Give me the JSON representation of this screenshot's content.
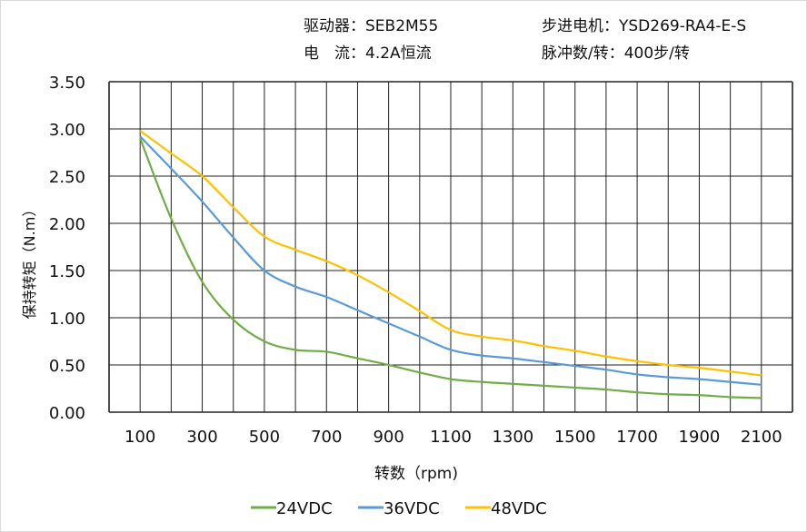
{
  "header": {
    "driver": "驱动器：SEB2M55",
    "motor": "步进电机：YSD269-RA4-E-S",
    "current": "电　流：4.2A恒流",
    "pulses": "脉冲数/转：400步/转"
  },
  "chart_data": {
    "type": "line",
    "title": "",
    "xlabel": "转数（rpm)",
    "ylabel": "保持转矩（N.m）",
    "xlim": [
      0,
      2200
    ],
    "ylim": [
      0,
      3.5
    ],
    "yticks": [
      "0.00",
      "0.50",
      "1.00",
      "1.50",
      "2.00",
      "2.50",
      "3.00",
      "3.50"
    ],
    "xticks": [
      "100",
      "300",
      "500",
      "700",
      "900",
      "1100",
      "1300",
      "1500",
      "1700",
      "1900",
      "2100"
    ],
    "grid": true,
    "legend_position": "bottom",
    "x": [
      100,
      200,
      300,
      400,
      500,
      600,
      700,
      800,
      900,
      1000,
      1100,
      1200,
      1300,
      1400,
      1500,
      1600,
      1700,
      1800,
      1900,
      2000,
      2100
    ],
    "series": [
      {
        "name": "24VDC",
        "color": "#70ad47",
        "values": [
          2.9,
          2.05,
          1.38,
          0.98,
          0.75,
          0.66,
          0.64,
          0.57,
          0.5,
          0.42,
          0.35,
          0.32,
          0.3,
          0.28,
          0.26,
          0.24,
          0.21,
          0.19,
          0.18,
          0.16,
          0.15
        ]
      },
      {
        "name": "36VDC",
        "color": "#5b9bd5",
        "values": [
          2.92,
          2.58,
          2.23,
          1.85,
          1.5,
          1.33,
          1.22,
          1.08,
          0.94,
          0.8,
          0.66,
          0.6,
          0.57,
          0.53,
          0.49,
          0.45,
          0.4,
          0.37,
          0.35,
          0.32,
          0.29
        ]
      },
      {
        "name": "48VDC",
        "color": "#ffc000",
        "values": [
          2.98,
          2.74,
          2.5,
          2.17,
          1.86,
          1.72,
          1.6,
          1.45,
          1.27,
          1.07,
          0.87,
          0.8,
          0.76,
          0.7,
          0.65,
          0.59,
          0.54,
          0.5,
          0.47,
          0.43,
          0.39
        ]
      }
    ]
  }
}
